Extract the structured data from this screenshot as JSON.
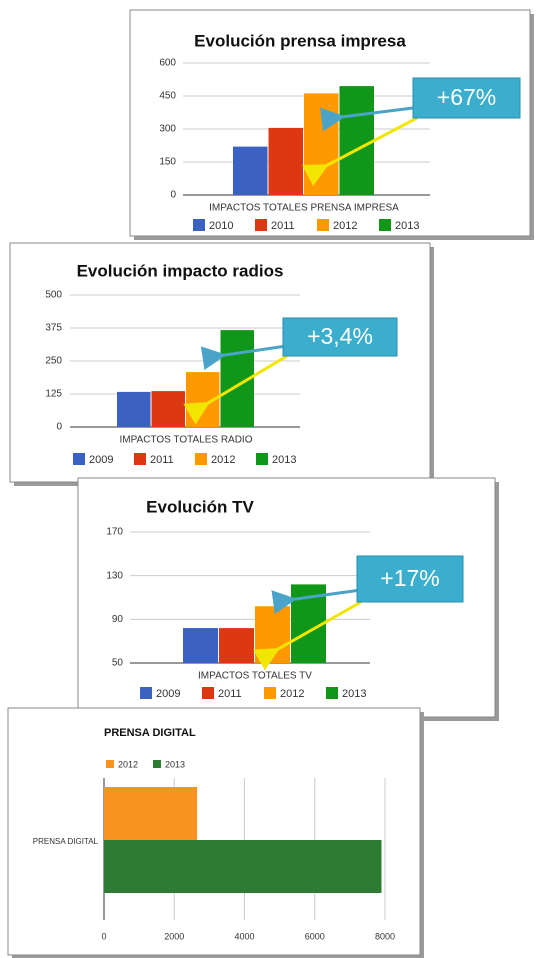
{
  "chart_data": [
    {
      "type": "bar",
      "title": "Evolución prensa impresa",
      "annotation": "+67%",
      "categories": [
        "IMPACTOS TOTALES PRENSA IMPRESA"
      ],
      "series": [
        {
          "name": "2010",
          "color": "#3b62c2",
          "values": [
            220
          ]
        },
        {
          "name": "2011",
          "color": "#dc3912",
          "values": [
            305
          ]
        },
        {
          "name": "2012",
          "color": "#ff9900",
          "values": [
            462
          ]
        },
        {
          "name": "2013",
          "color": "#109618",
          "values": [
            495
          ]
        }
      ],
      "ylim": [
        0,
        600
      ],
      "yticks": [
        0,
        150,
        300,
        450,
        600
      ],
      "grid": true,
      "legend": "bottom"
    },
    {
      "type": "bar",
      "title": "Evolución impacto radios",
      "annotation": "+3,4%",
      "categories": [
        "IMPACTOS TOTALES RADIO"
      ],
      "series": [
        {
          "name": "2009",
          "color": "#3b62c2",
          "values": [
            133
          ]
        },
        {
          "name": "2011",
          "color": "#dc3912",
          "values": [
            136
          ]
        },
        {
          "name": "2012",
          "color": "#ff9900",
          "values": [
            208
          ]
        },
        {
          "name": "2013",
          "color": "#109618",
          "values": [
            367
          ]
        }
      ],
      "ylim": [
        0,
        500
      ],
      "yticks": [
        0,
        125,
        250,
        375,
        500
      ],
      "grid": true,
      "legend": "bottom"
    },
    {
      "type": "bar",
      "title": "Evolución TV",
      "annotation": "+17%",
      "categories": [
        "IMPACTOS TOTALES TV"
      ],
      "series": [
        {
          "name": "2009",
          "color": "#3b62c2",
          "values": [
            82
          ]
        },
        {
          "name": "2011",
          "color": "#dc3912",
          "values": [
            82
          ]
        },
        {
          "name": "2012",
          "color": "#ff9900",
          "values": [
            102
          ]
        },
        {
          "name": "2013",
          "color": "#109618",
          "values": [
            122
          ]
        }
      ],
      "ylim": [
        50,
        170
      ],
      "yticks": [
        50,
        90,
        130,
        170
      ],
      "grid": true,
      "legend": "bottom"
    },
    {
      "type": "hbar",
      "title": "PRENSA DIGITAL",
      "categories": [
        "PRENSA DIGITAL"
      ],
      "series": [
        {
          "name": "2012",
          "color": "#f7931e",
          "values": [
            2650
          ]
        },
        {
          "name": "2013",
          "color": "#2e7b33",
          "values": [
            7900
          ]
        }
      ],
      "xlim": [
        0,
        8000
      ],
      "xticks": [
        0,
        2000,
        4000,
        6000,
        8000
      ],
      "grid": true,
      "legend": "top-left"
    }
  ]
}
